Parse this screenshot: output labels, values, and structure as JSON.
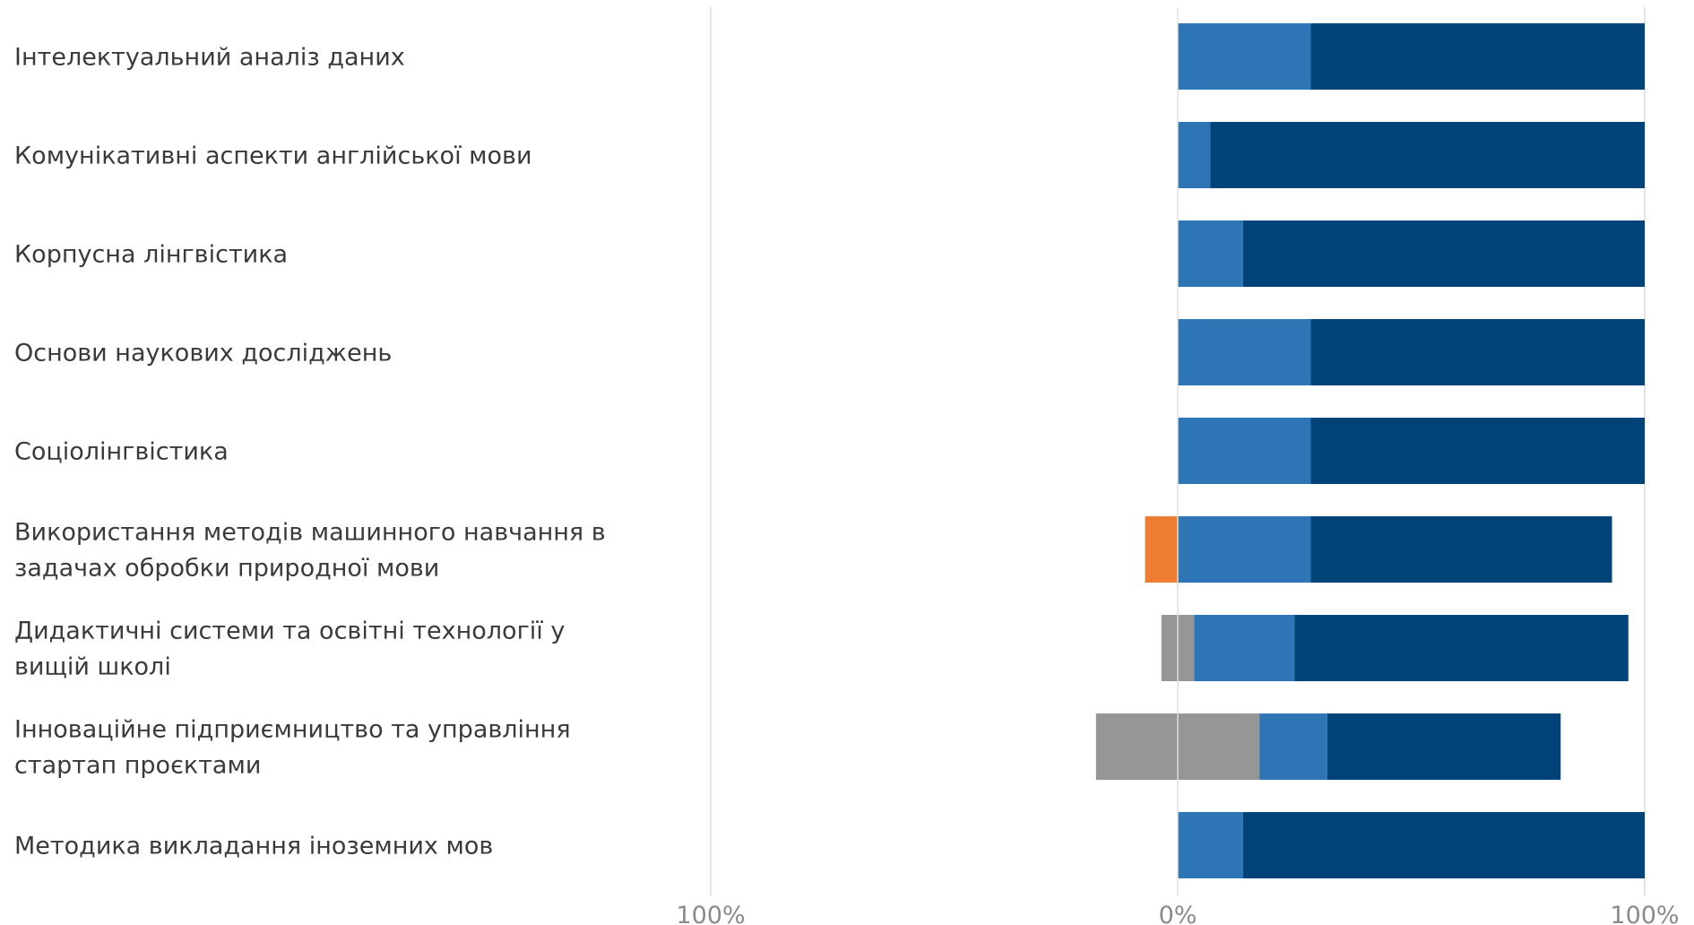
{
  "chart_data": {
    "type": "bar",
    "orientation": "horizontal",
    "stacked": "diverging",
    "categories": [
      "Інтелектуальний аналіз даних",
      "Комунікативні аспекти англійської мови",
      "Корпусна лінгвістика",
      "Основи наукових досліджень",
      "Соціолінгвістика",
      "Використання методів машинного навчання в задачах обробки природної мови",
      "Дидактичні системи та освітні технології у вищій школі",
      "Інноваційне підприємництво та управління стартап проєктами",
      "Методика викладання іноземних мов"
    ],
    "series": [
      {
        "side": "negative",
        "color": "#ED7D31",
        "values": [
          0,
          0,
          0,
          0,
          0,
          7,
          0,
          0,
          0
        ]
      },
      {
        "side": "negative",
        "color": "#969696",
        "values": [
          0,
          0,
          0,
          0,
          0,
          0,
          3.5,
          17.5,
          0
        ]
      },
      {
        "side": "positive",
        "color": "#969696",
        "values": [
          0,
          0,
          0,
          0,
          0,
          0,
          3.5,
          17.5,
          0
        ]
      },
      {
        "side": "positive",
        "color": "#2E75B6",
        "values": [
          28.5,
          7,
          14,
          28.5,
          28.5,
          28.5,
          21.5,
          14.5,
          14
        ]
      },
      {
        "side": "positive",
        "color": "#004379",
        "values": [
          71.5,
          93,
          86,
          71.5,
          71.5,
          64.5,
          71.5,
          50,
          86
        ]
      }
    ],
    "xlim": [
      -100,
      100
    ],
    "x_ticks": [
      "100%",
      "0%",
      "100%"
    ],
    "grid": "vertical",
    "legend": "none"
  }
}
